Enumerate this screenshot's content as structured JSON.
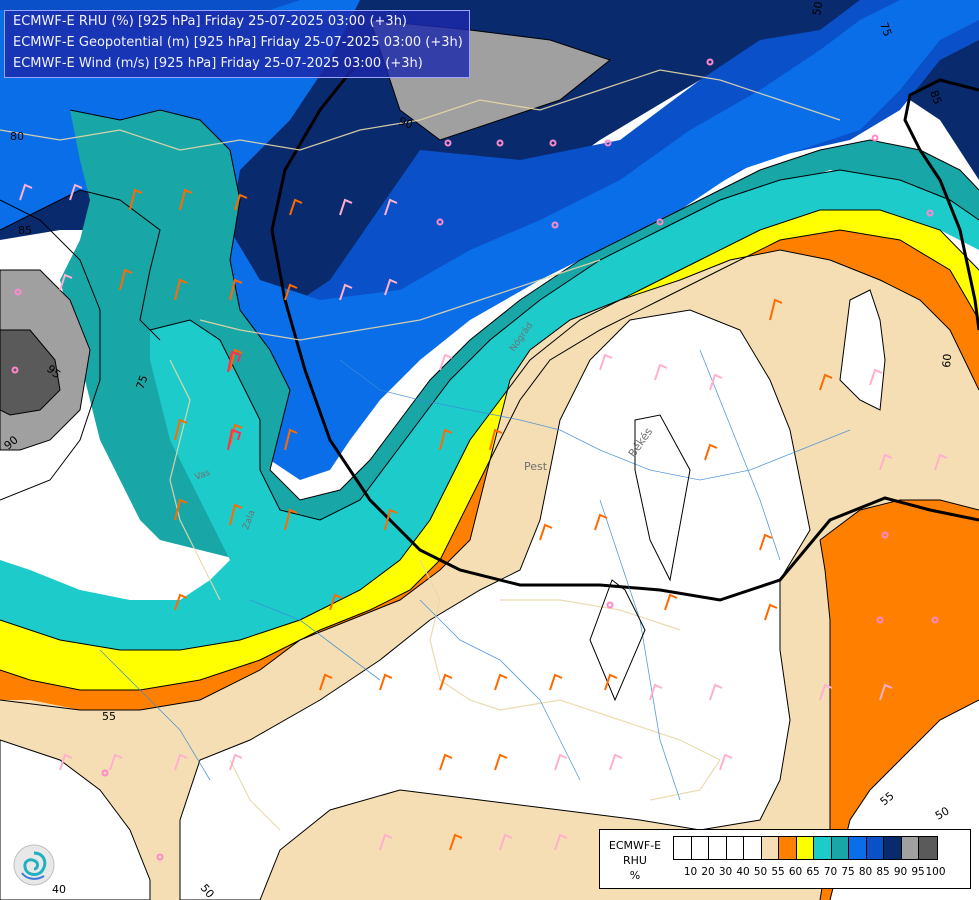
{
  "header": {
    "line1": "ECMWF-E RHU (%) [925 hPa] Friday 25-07-2025 03:00 (+3h)",
    "line2": "ECMWF-E Geopotential (m) [925 hPa] Friday 25-07-2025 03:00 (+3h)",
    "line3": "ECMWF-E Wind (m/s) [925 hPa] Friday 25-07-2025 03:00 (+3h)"
  },
  "legend": {
    "title_model": "ECMWF-E",
    "title_var": "RHU",
    "title_unit": "%",
    "levels": [
      "10",
      "20",
      "30",
      "40",
      "50",
      "55",
      "60",
      "65",
      "70",
      "75",
      "80",
      "85",
      "90",
      "95",
      "100"
    ],
    "colors": [
      "#ffffff",
      "#ffffff",
      "#ffffff",
      "#ffffff",
      "#ffffff",
      "#f5deb3",
      "#ff8000",
      "#ffff00",
      "#1ecbcb",
      "#19a6a6",
      "#0a6ee8",
      "#0a50c8",
      "#0a2a6e",
      "#a0a0a0",
      "#5a5a5a"
    ]
  },
  "contour_labels": {
    "rhu_75": "75",
    "rhu_85": "85",
    "rhu_95": "95",
    "rhu_90": "90",
    "rhu_80": "80",
    "rhu_60": "60",
    "rhu_55_left": "55",
    "rhu_55_right": "55",
    "rhu_50_bottom": "50",
    "rhu_50_right": "50",
    "rhu_50_top": "50",
    "rhu_75_top": "75",
    "rhu_40": "40",
    "rhu_90_top": "90",
    "rhu_85_top": "85"
  },
  "place_labels": {
    "pest": "Pest",
    "bekes": "Békés",
    "vas": "Vas",
    "nograd": "Nógrád",
    "zala": "Zala"
  },
  "icons": {
    "logo": "ecmwf-swirl-logo"
  }
}
